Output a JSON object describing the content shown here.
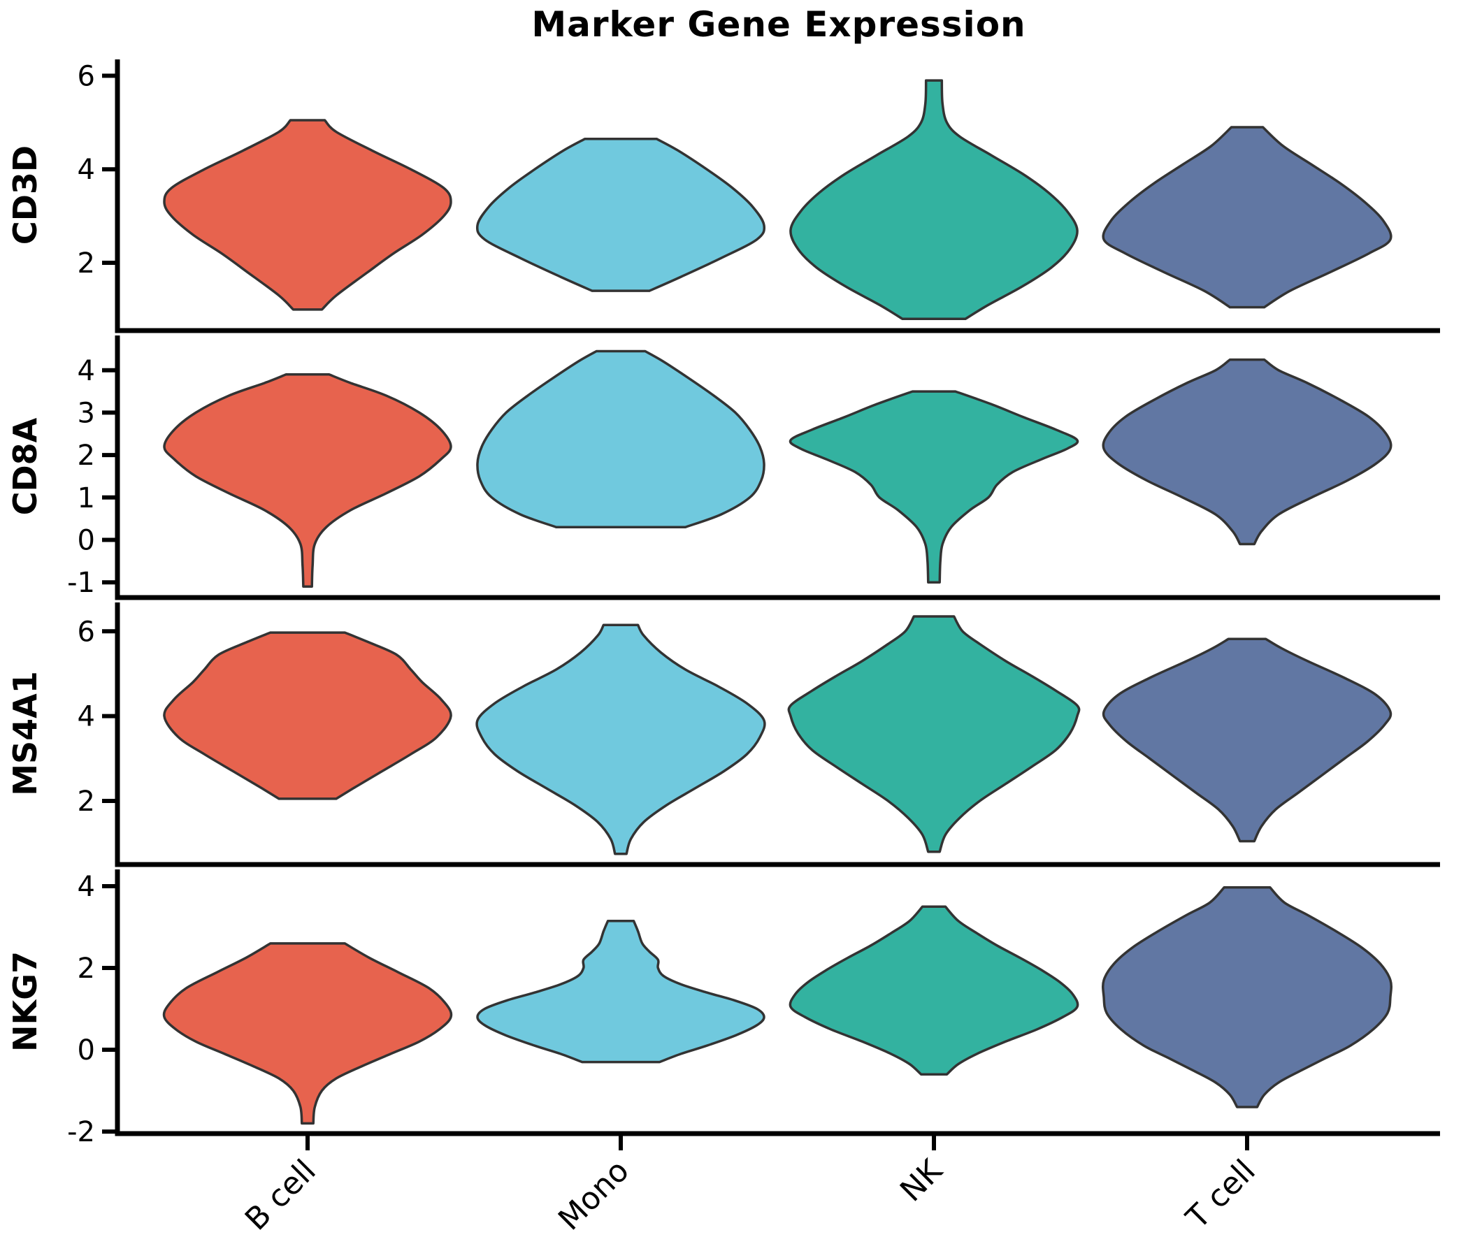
{
  "chart_data": {
    "type": "violin",
    "title": "Marker Gene Expression",
    "subtitle": "",
    "xlabel": "",
    "categories": [
      "B cell",
      "Mono",
      "NK",
      "T cell"
    ],
    "category_colors": [
      "#E7634E",
      "#70C9DE",
      "#33B2A0",
      "#6177A3"
    ],
    "edge_color": "#333333",
    "axis_color": "#000000",
    "grid": "off",
    "legend": "none",
    "rows": [
      {
        "gene": "CD3D",
        "ylim": [
          0.55,
          6.35
        ],
        "yticks": [
          2,
          4,
          6
        ],
        "violins": [
          [
            [
              1.0,
              0.1
            ],
            [
              1.3,
              0.2
            ],
            [
              1.8,
              0.42
            ],
            [
              2.2,
              0.6
            ],
            [
              2.6,
              0.8
            ],
            [
              3.0,
              0.95
            ],
            [
              3.3,
              1.0
            ],
            [
              3.6,
              0.95
            ],
            [
              4.0,
              0.72
            ],
            [
              4.4,
              0.45
            ],
            [
              4.8,
              0.2
            ],
            [
              5.05,
              0.12
            ]
          ],
          [
            [
              1.4,
              0.2
            ],
            [
              1.7,
              0.42
            ],
            [
              2.1,
              0.7
            ],
            [
              2.5,
              0.95
            ],
            [
              2.8,
              1.0
            ],
            [
              3.2,
              0.92
            ],
            [
              3.6,
              0.78
            ],
            [
              4.0,
              0.6
            ],
            [
              4.4,
              0.4
            ],
            [
              4.65,
              0.25
            ]
          ],
          [
            [
              0.8,
              0.22
            ],
            [
              1.1,
              0.38
            ],
            [
              1.5,
              0.62
            ],
            [
              1.9,
              0.82
            ],
            [
              2.3,
              0.95
            ],
            [
              2.7,
              1.0
            ],
            [
              3.1,
              0.93
            ],
            [
              3.5,
              0.8
            ],
            [
              3.9,
              0.62
            ],
            [
              4.3,
              0.4
            ],
            [
              4.7,
              0.18
            ],
            [
              5.0,
              0.09
            ],
            [
              5.4,
              0.06
            ],
            [
              5.9,
              0.055
            ]
          ],
          [
            [
              1.05,
              0.12
            ],
            [
              1.4,
              0.3
            ],
            [
              1.8,
              0.58
            ],
            [
              2.2,
              0.85
            ],
            [
              2.5,
              1.0
            ],
            [
              2.9,
              0.95
            ],
            [
              3.3,
              0.82
            ],
            [
              3.7,
              0.65
            ],
            [
              4.1,
              0.45
            ],
            [
              4.5,
              0.25
            ],
            [
              4.9,
              0.11
            ]
          ]
        ]
      },
      {
        "gene": "CD8A",
        "ylim": [
          -1.36,
          4.82
        ],
        "yticks": [
          -1,
          0,
          1,
          2,
          3,
          4
        ],
        "violins": [
          [
            [
              -1.1,
              0.03
            ],
            [
              -0.6,
              0.035
            ],
            [
              -0.1,
              0.05
            ],
            [
              0.3,
              0.13
            ],
            [
              0.7,
              0.3
            ],
            [
              1.1,
              0.55
            ],
            [
              1.5,
              0.78
            ],
            [
              1.9,
              0.93
            ],
            [
              2.2,
              1.0
            ],
            [
              2.6,
              0.93
            ],
            [
              3.0,
              0.78
            ],
            [
              3.4,
              0.55
            ],
            [
              3.7,
              0.3
            ],
            [
              3.9,
              0.15
            ]
          ],
          [
            [
              0.3,
              0.45
            ],
            [
              0.6,
              0.7
            ],
            [
              1.0,
              0.9
            ],
            [
              1.4,
              0.98
            ],
            [
              1.8,
              1.0
            ],
            [
              2.2,
              0.97
            ],
            [
              2.6,
              0.9
            ],
            [
              3.0,
              0.8
            ],
            [
              3.4,
              0.65
            ],
            [
              3.8,
              0.48
            ],
            [
              4.2,
              0.3
            ],
            [
              4.45,
              0.17
            ]
          ],
          [
            [
              -1.0,
              0.04
            ],
            [
              -0.5,
              0.045
            ],
            [
              -0.1,
              0.06
            ],
            [
              0.3,
              0.12
            ],
            [
              0.7,
              0.25
            ],
            [
              1.0,
              0.38
            ],
            [
              1.3,
              0.44
            ],
            [
              1.6,
              0.55
            ],
            [
              1.9,
              0.75
            ],
            [
              2.15,
              0.93
            ],
            [
              2.35,
              1.0
            ],
            [
              2.6,
              0.85
            ],
            [
              2.9,
              0.62
            ],
            [
              3.2,
              0.4
            ],
            [
              3.5,
              0.15
            ]
          ],
          [
            [
              -0.1,
              0.05
            ],
            [
              0.2,
              0.1
            ],
            [
              0.6,
              0.22
            ],
            [
              1.0,
              0.45
            ],
            [
              1.4,
              0.7
            ],
            [
              1.8,
              0.9
            ],
            [
              2.15,
              1.0
            ],
            [
              2.5,
              0.97
            ],
            [
              2.9,
              0.85
            ],
            [
              3.3,
              0.65
            ],
            [
              3.7,
              0.42
            ],
            [
              4.0,
              0.22
            ],
            [
              4.25,
              0.12
            ]
          ]
        ]
      },
      {
        "gene": "MS4A1",
        "ylim": [
          0.5,
          6.68
        ],
        "yticks": [
          2,
          4,
          6
        ],
        "violins": [
          [
            [
              2.05,
              0.2
            ],
            [
              2.3,
              0.32
            ],
            [
              2.7,
              0.52
            ],
            [
              3.1,
              0.72
            ],
            [
              3.5,
              0.9
            ],
            [
              4.0,
              1.0
            ],
            [
              4.4,
              0.93
            ],
            [
              4.8,
              0.8
            ],
            [
              5.1,
              0.72
            ],
            [
              5.45,
              0.62
            ],
            [
              5.75,
              0.42
            ],
            [
              5.97,
              0.26
            ]
          ],
          [
            [
              0.75,
              0.04
            ],
            [
              1.1,
              0.07
            ],
            [
              1.5,
              0.16
            ],
            [
              1.9,
              0.32
            ],
            [
              2.3,
              0.52
            ],
            [
              2.7,
              0.72
            ],
            [
              3.1,
              0.88
            ],
            [
              3.5,
              0.97
            ],
            [
              3.9,
              1.0
            ],
            [
              4.3,
              0.88
            ],
            [
              4.7,
              0.68
            ],
            [
              5.1,
              0.45
            ],
            [
              5.5,
              0.28
            ],
            [
              5.9,
              0.16
            ],
            [
              6.15,
              0.12
            ]
          ],
          [
            [
              0.8,
              0.04
            ],
            [
              1.2,
              0.08
            ],
            [
              1.6,
              0.18
            ],
            [
              2.0,
              0.32
            ],
            [
              2.4,
              0.5
            ],
            [
              2.8,
              0.68
            ],
            [
              3.2,
              0.85
            ],
            [
              3.6,
              0.95
            ],
            [
              4.0,
              1.0
            ],
            [
              4.25,
              1.0
            ],
            [
              4.6,
              0.85
            ],
            [
              4.95,
              0.68
            ],
            [
              5.3,
              0.5
            ],
            [
              5.7,
              0.32
            ],
            [
              6.0,
              0.2
            ],
            [
              6.35,
              0.14
            ]
          ],
          [
            [
              1.05,
              0.05
            ],
            [
              1.4,
              0.1
            ],
            [
              1.8,
              0.2
            ],
            [
              2.2,
              0.36
            ],
            [
              2.6,
              0.52
            ],
            [
              3.0,
              0.68
            ],
            [
              3.4,
              0.84
            ],
            [
              3.8,
              0.96
            ],
            [
              4.1,
              1.0
            ],
            [
              4.5,
              0.9
            ],
            [
              4.9,
              0.68
            ],
            [
              5.3,
              0.42
            ],
            [
              5.6,
              0.24
            ],
            [
              5.82,
              0.13
            ]
          ]
        ]
      },
      {
        "gene": "NKG7",
        "ylim": [
          -2.05,
          4.41
        ],
        "yticks": [
          -2,
          0,
          2,
          4
        ],
        "violins": [
          [
            [
              -1.8,
              0.04
            ],
            [
              -1.4,
              0.05
            ],
            [
              -1.0,
              0.1
            ],
            [
              -0.7,
              0.2
            ],
            [
              -0.4,
              0.38
            ],
            [
              -0.1,
              0.58
            ],
            [
              0.2,
              0.78
            ],
            [
              0.5,
              0.92
            ],
            [
              0.8,
              1.0
            ],
            [
              1.1,
              0.97
            ],
            [
              1.5,
              0.85
            ],
            [
              1.9,
              0.63
            ],
            [
              2.25,
              0.43
            ],
            [
              2.6,
              0.26
            ]
          ],
          [
            [
              -0.3,
              0.27
            ],
            [
              -0.1,
              0.42
            ],
            [
              0.1,
              0.6
            ],
            [
              0.35,
              0.8
            ],
            [
              0.6,
              0.95
            ],
            [
              0.8,
              1.0
            ],
            [
              1.0,
              0.95
            ],
            [
              1.2,
              0.8
            ],
            [
              1.4,
              0.6
            ],
            [
              1.6,
              0.42
            ],
            [
              1.8,
              0.3
            ],
            [
              2.0,
              0.26
            ],
            [
              2.2,
              0.26
            ],
            [
              2.4,
              0.2
            ],
            [
              2.6,
              0.15
            ],
            [
              2.9,
              0.12
            ],
            [
              3.15,
              0.09
            ]
          ],
          [
            [
              -0.6,
              0.09
            ],
            [
              -0.35,
              0.17
            ],
            [
              -0.1,
              0.3
            ],
            [
              0.2,
              0.5
            ],
            [
              0.5,
              0.72
            ],
            [
              0.8,
              0.9
            ],
            [
              1.05,
              1.0
            ],
            [
              1.35,
              0.97
            ],
            [
              1.65,
              0.88
            ],
            [
              1.95,
              0.75
            ],
            [
              2.25,
              0.6
            ],
            [
              2.55,
              0.44
            ],
            [
              2.85,
              0.3
            ],
            [
              3.15,
              0.17
            ],
            [
              3.5,
              0.08
            ]
          ],
          [
            [
              -1.4,
              0.07
            ],
            [
              -1.1,
              0.12
            ],
            [
              -0.8,
              0.22
            ],
            [
              -0.5,
              0.38
            ],
            [
              -0.2,
              0.55
            ],
            [
              0.1,
              0.72
            ],
            [
              0.5,
              0.88
            ],
            [
              0.9,
              0.98
            ],
            [
              1.3,
              1.0
            ],
            [
              1.7,
              1.0
            ],
            [
              2.1,
              0.93
            ],
            [
              2.5,
              0.8
            ],
            [
              2.9,
              0.62
            ],
            [
              3.3,
              0.42
            ],
            [
              3.6,
              0.26
            ],
            [
              3.97,
              0.16
            ]
          ]
        ]
      }
    ]
  }
}
